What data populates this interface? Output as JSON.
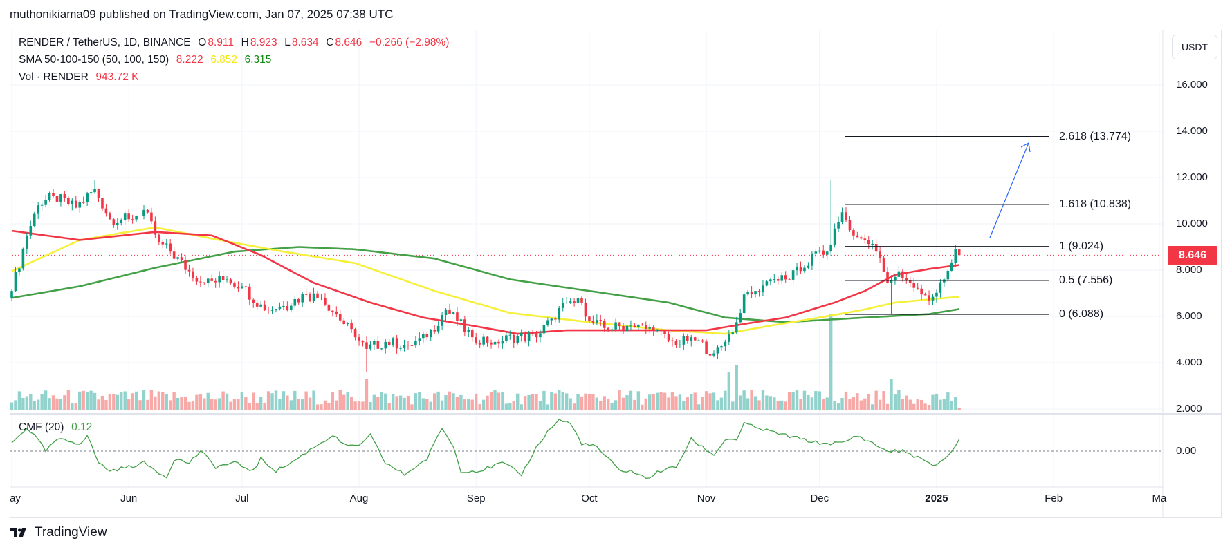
{
  "header": {
    "published": "muthonikiama09 published on TradingView.com, Jan 07, 2025 07:38 UTC"
  },
  "legend": {
    "symbol": "RENDER / TetherUS, 1D, BINANCE",
    "o_label": "O",
    "o": "8.911",
    "h_label": "H",
    "h": "8.923",
    "l_label": "L",
    "l": "8.634",
    "c_label": "C",
    "c": "8.646",
    "change": "−0.266 (−2.98%)",
    "sma_label": "SMA 50-100-150 (50, 100, 150)",
    "sma50": "8.222",
    "sma100": "6.852",
    "sma150": "6.315",
    "vol_label": "Vol · RENDER",
    "vol": "943.72 K",
    "cmf_label": "CMF (20)",
    "cmf": "0.12"
  },
  "currency_button": "USDT",
  "last_price": "8.646",
  "colors": {
    "up": "#089981",
    "down": "#f23645",
    "vol_up": "#92d2cc",
    "vol_down": "#f7a9a7",
    "sma50": "#f23645",
    "sma100": "#f5f03a",
    "sma150": "#43a047",
    "cmf": "#43a047",
    "arrow": "#2962ff"
  },
  "chart_data": {
    "type": "candlestick",
    "x_start": "2024-05-01",
    "x_unit": "day",
    "ylim": [
      2,
      17
    ],
    "price_ticks": [
      "16.000",
      "14.000",
      "12.000",
      "10.000",
      "8.000",
      "6.000",
      "4.000",
      "2.000"
    ],
    "price_tick_values": [
      16,
      14,
      12,
      10,
      8,
      6,
      4,
      2
    ],
    "time_ticks": [
      {
        "label": "ay",
        "day": 0
      },
      {
        "label": "Jun",
        "day": 31
      },
      {
        "label": "Jul",
        "day": 61
      },
      {
        "label": "Aug",
        "day": 92
      },
      {
        "label": "Sep",
        "day": 123
      },
      {
        "label": "Oct",
        "day": 153
      },
      {
        "label": "Nov",
        "day": 184
      },
      {
        "label": "Dec",
        "day": 214
      },
      {
        "label": "2025",
        "day": 245
      },
      {
        "label": "Feb",
        "day": 276
      },
      {
        "label": "Ma",
        "day": 304
      }
    ],
    "close_path": [
      [
        0,
        7.1
      ],
      [
        4,
        9.5
      ],
      [
        7,
        10.8
      ],
      [
        11,
        11.2
      ],
      [
        17,
        10.7
      ],
      [
        22,
        11.5
      ],
      [
        26,
        10.2
      ],
      [
        31,
        10.2
      ],
      [
        35,
        10.6
      ],
      [
        39,
        9.2
      ],
      [
        42,
        8.8
      ],
      [
        47,
        7.95
      ],
      [
        51,
        7.45
      ],
      [
        57,
        7.6
      ],
      [
        61,
        7.3
      ],
      [
        67,
        6.3
      ],
      [
        72,
        6.45
      ],
      [
        78,
        6.95
      ],
      [
        82,
        6.8
      ],
      [
        86,
        6.1
      ],
      [
        91,
        5.1
      ],
      [
        94,
        4.6
      ],
      [
        99,
        4.9
      ],
      [
        105,
        4.75
      ],
      [
        110,
        5.1
      ],
      [
        115,
        6.3
      ],
      [
        118,
        5.8
      ],
      [
        122,
        5.1
      ],
      [
        128,
        4.9
      ],
      [
        134,
        5.15
      ],
      [
        139,
        5.1
      ],
      [
        143,
        5.9
      ],
      [
        147,
        6.6
      ],
      [
        151,
        6.6
      ],
      [
        153,
        5.8
      ],
      [
        157,
        5.5
      ],
      [
        164,
        5.6
      ],
      [
        170,
        5.4
      ],
      [
        176,
        4.75
      ],
      [
        180,
        5.1
      ],
      [
        186,
        4.4
      ],
      [
        189,
        4.9
      ],
      [
        192,
        5.75
      ],
      [
        194,
        6.95
      ],
      [
        197,
        7.1
      ],
      [
        201,
        7.6
      ],
      [
        205,
        7.6
      ],
      [
        210,
        8.1
      ],
      [
        213,
        8.8
      ],
      [
        216,
        8.8
      ],
      [
        218,
        9.8
      ],
      [
        220,
        10.5
      ],
      [
        223,
        9.5
      ],
      [
        226,
        9.3
      ],
      [
        229,
        8.8
      ],
      [
        232,
        7.45
      ],
      [
        235,
        7.95
      ],
      [
        238,
        7.45
      ],
      [
        241,
        6.95
      ],
      [
        244,
        6.85
      ],
      [
        247,
        7.6
      ],
      [
        249,
        8.3
      ],
      [
        250,
        8.911
      ],
      [
        251,
        8.646
      ]
    ],
    "wick_extremes": [
      [
        22,
        11.9
      ],
      [
        94,
        3.6
      ],
      [
        217,
        11.9
      ],
      [
        233,
        6.088
      ]
    ],
    "volume_spikes": [
      [
        217,
        140
      ],
      [
        192,
        65
      ],
      [
        94,
        45
      ],
      [
        190,
        55
      ],
      [
        233,
        45
      ]
    ],
    "sma50": [
      [
        0,
        9.7
      ],
      [
        18,
        9.3
      ],
      [
        38,
        9.65
      ],
      [
        53,
        9.5
      ],
      [
        66,
        8.65
      ],
      [
        80,
        7.45
      ],
      [
        95,
        6.6
      ],
      [
        109,
        5.95
      ],
      [
        122,
        5.6
      ],
      [
        134,
        5.25
      ],
      [
        147,
        5.4
      ],
      [
        164,
        5.4
      ],
      [
        184,
        5.4
      ],
      [
        195,
        5.7
      ],
      [
        205,
        5.95
      ],
      [
        218,
        6.6
      ],
      [
        226,
        7.1
      ],
      [
        234,
        7.8
      ],
      [
        243,
        8.05
      ],
      [
        251,
        8.222
      ]
    ],
    "sma100": [
      [
        0,
        7.95
      ],
      [
        18,
        9.3
      ],
      [
        38,
        9.85
      ],
      [
        55,
        9.3
      ],
      [
        72,
        8.8
      ],
      [
        91,
        8.3
      ],
      [
        112,
        7.1
      ],
      [
        132,
        6.15
      ],
      [
        153,
        5.75
      ],
      [
        174,
        5.4
      ],
      [
        189,
        5.25
      ],
      [
        201,
        5.6
      ],
      [
        214,
        5.95
      ],
      [
        226,
        6.3
      ],
      [
        234,
        6.6
      ],
      [
        251,
        6.852
      ]
    ],
    "sma150": [
      [
        0,
        6.8
      ],
      [
        18,
        7.3
      ],
      [
        38,
        8.1
      ],
      [
        59,
        8.8
      ],
      [
        76,
        9.0
      ],
      [
        91,
        8.9
      ],
      [
        112,
        8.5
      ],
      [
        132,
        7.6
      ],
      [
        153,
        7.1
      ],
      [
        174,
        6.6
      ],
      [
        189,
        5.95
      ],
      [
        205,
        5.75
      ],
      [
        226,
        5.95
      ],
      [
        243,
        6.1
      ],
      [
        251,
        6.315
      ]
    ],
    "cmf_zero_label": "0.00",
    "cmf": [
      [
        0,
        0.085
      ],
      [
        4,
        0.256
      ],
      [
        6,
        0.171
      ],
      [
        9,
        0
      ],
      [
        12,
        0.128
      ],
      [
        18,
        0.085
      ],
      [
        20,
        0.171
      ],
      [
        23,
        -0.128
      ],
      [
        26,
        -0.214
      ],
      [
        31,
        -0.171
      ],
      [
        35,
        -0.128
      ],
      [
        41,
        -0.282
      ],
      [
        43,
        -0.085
      ],
      [
        47,
        -0.128
      ],
      [
        50,
        0
      ],
      [
        54,
        -0.171
      ],
      [
        59,
        -0.128
      ],
      [
        64,
        -0.214
      ],
      [
        66,
        -0.085
      ],
      [
        70,
        -0.214
      ],
      [
        74,
        -0.128
      ],
      [
        77,
        -0.043
      ],
      [
        80,
        0.043
      ],
      [
        85,
        0.171
      ],
      [
        89,
        0.043
      ],
      [
        93,
        0.085
      ],
      [
        95,
        0.171
      ],
      [
        99,
        -0.128
      ],
      [
        104,
        -0.256
      ],
      [
        110,
        -0.085
      ],
      [
        114,
        0.256
      ],
      [
        117,
        0.043
      ],
      [
        119,
        -0.214
      ],
      [
        124,
        -0.214
      ],
      [
        130,
        -0.128
      ],
      [
        135,
        -0.256
      ],
      [
        139,
        0.043
      ],
      [
        142,
        0.214
      ],
      [
        145,
        0.342
      ],
      [
        148,
        0.299
      ],
      [
        151,
        0.085
      ],
      [
        155,
        0.043
      ],
      [
        161,
        -0.214
      ],
      [
        164,
        -0.214
      ],
      [
        168,
        -0.299
      ],
      [
        172,
        -0.214
      ],
      [
        176,
        -0.171
      ],
      [
        180,
        0.128
      ],
      [
        186,
        -0.043
      ],
      [
        189,
        0.128
      ],
      [
        192,
        0.128
      ],
      [
        194,
        0.299
      ],
      [
        197,
        0.256
      ],
      [
        205,
        0.171
      ],
      [
        214,
        0.085
      ],
      [
        220,
        0.085
      ],
      [
        224,
        0.171
      ],
      [
        228,
        0.085
      ],
      [
        232,
        0
      ],
      [
        236,
        0
      ],
      [
        241,
        -0.085
      ],
      [
        244,
        -0.171
      ],
      [
        247,
        -0.085
      ],
      [
        249,
        0
      ],
      [
        251,
        0.12
      ]
    ],
    "fib_levels": [
      {
        "ratio": 2.618,
        "price": 13.774,
        "label": "2.618 (13.774)"
      },
      {
        "ratio": 1.618,
        "price": 10.838,
        "label": "1.618 (10.838)"
      },
      {
        "ratio": 1,
        "price": 9.024,
        "label": "1 (9.024)"
      },
      {
        "ratio": 0.5,
        "price": 7.556,
        "label": "0.5 (7.556)"
      },
      {
        "ratio": 0,
        "price": 6.088,
        "label": "0 (6.088)"
      }
    ]
  },
  "brand": "TradingView"
}
